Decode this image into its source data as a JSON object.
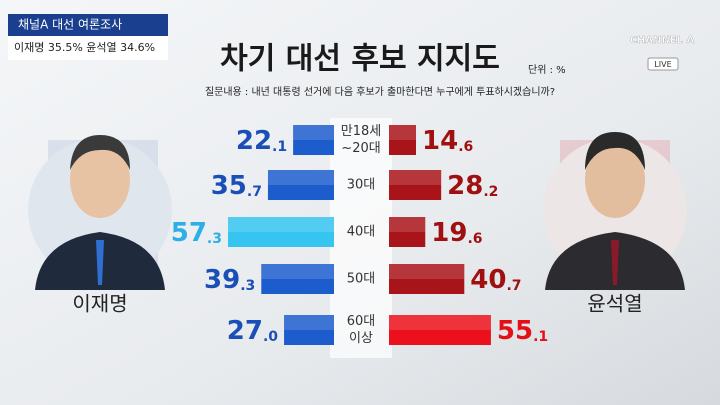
{
  "header": {
    "poll_name": "채널A 대선 여론조사",
    "summary": "이재명 35.5% 윤석열 34.6%"
  },
  "logo": {
    "brand": "CHANNEL A",
    "badge": "LIVE"
  },
  "chart_data": {
    "type": "butterfly_bar",
    "title": "차기 대선 후보 지지도",
    "unit": "단위 : %",
    "question": "질문내용 : 내년 대통령 선거에 다음 후보가 출마한다면 누구에게 투표하시겠습니까?",
    "categories": [
      [
        "만18세",
        "~20대"
      ],
      [
        "30대"
      ],
      [
        "40대"
      ],
      [
        "50대"
      ],
      [
        "60대",
        "이상"
      ]
    ],
    "series": [
      {
        "name": "이재명",
        "side": "left",
        "colors": [
          "#1d5ccc",
          "#1d5ccc",
          "#36c4f0",
          "#1d5ccc",
          "#1d5ccc"
        ],
        "label_colors": [
          "#1a4fb8",
          "#1a4fb8",
          "#2ab0e6",
          "#1a4fb8",
          "#1a4fb8"
        ],
        "values": [
          22.1,
          35.7,
          57.3,
          39.3,
          27.0
        ],
        "value_labels": [
          "22.1",
          "35.7",
          "57.3",
          "39.3",
          "27.0"
        ]
      },
      {
        "name": "윤석열",
        "side": "right",
        "colors": [
          "#a8141a",
          "#a8141a",
          "#a8141a",
          "#a8141a",
          "#ec101c"
        ],
        "label_colors": [
          "#a01010",
          "#a01010",
          "#a01010",
          "#a01010",
          "#e41016"
        ],
        "values": [
          14.6,
          28.2,
          19.6,
          40.7,
          55.1
        ],
        "value_labels": [
          "14.6",
          "28.2",
          "19.6",
          "40.7",
          "55.1"
        ]
      }
    ]
  }
}
